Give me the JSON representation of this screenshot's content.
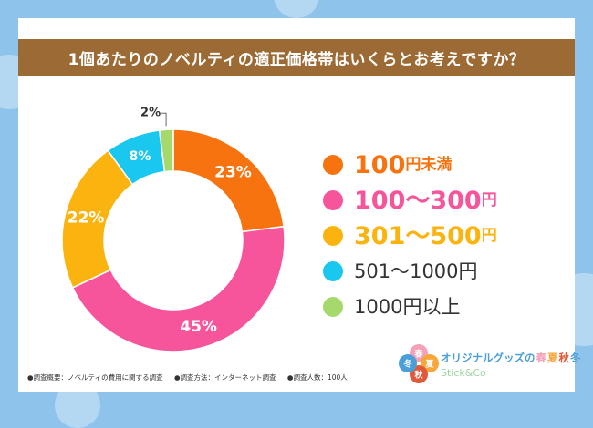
{
  "title": "1個あたりのノベルティの適正価格帯はいくらとお考えですか？",
  "chart_data": {
    "type": "pie",
    "variant": "donut",
    "title": "1個あたりのノベルティの適正価格帯はいくらとお考えですか？",
    "categories": [
      "100円未満",
      "100〜300円",
      "301〜500円",
      "501〜1000円",
      "1000円以上"
    ],
    "values": [
      23,
      45,
      22,
      8,
      2
    ],
    "value_labels": [
      "23%",
      "45%",
      "22%",
      "8%",
      "2%"
    ],
    "colors": [
      "#f7730f",
      "#f7559b",
      "#fbb40f",
      "#19c7ef",
      "#a5d96c"
    ],
    "legend_position": "right"
  },
  "legend": [
    {
      "num": "100",
      "unit": "円未満",
      "style": "big",
      "color": "#f7730f"
    },
    {
      "num": "100〜300",
      "unit": "円",
      "style": "big",
      "color": "#f7559b"
    },
    {
      "num": "301〜500",
      "unit": "円",
      "style": "big",
      "color": "#fbb40f"
    },
    {
      "text": "501〜1000円",
      "style": "plain",
      "color": "#19c7ef"
    },
    {
      "text": "1000円以上",
      "style": "plain",
      "color": "#a5d96c"
    }
  ],
  "footnote": {
    "outline": "●調査概要：ノベルティの費用に関する調査",
    "method": "●調査方法：インターネット調査",
    "respondents": "●調査人数：100人"
  },
  "logo": {
    "text": "オリジナルグッズの",
    "seasons": [
      "春",
      "夏",
      "秋",
      "冬"
    ],
    "flower_chars": [
      "春",
      "夏",
      "秋",
      "冬"
    ],
    "sub": "Stick&Co",
    "text_color": "#4a9fd8",
    "season_colors": [
      "#f4a0b8",
      "#f7a63a",
      "#e05a3a",
      "#4a9fd8"
    ]
  }
}
